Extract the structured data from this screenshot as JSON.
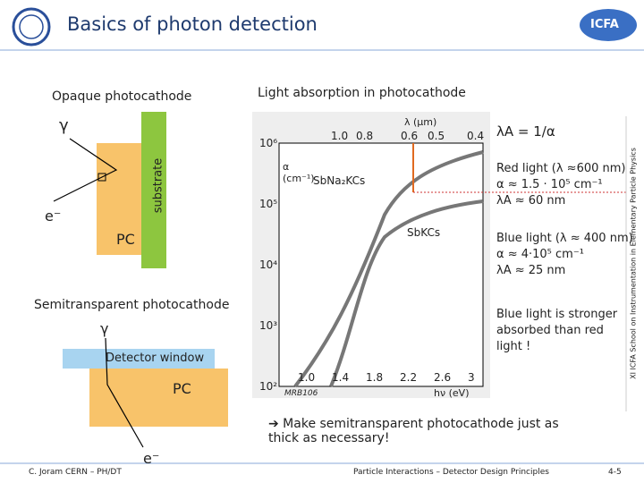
{
  "header": {
    "title": "Basics of photon detection",
    "logo_right": "ICFA"
  },
  "opaque": {
    "title": "Opaque photocathode",
    "gamma": "γ",
    "substrate": "substrate",
    "electron": "e⁻",
    "pc": "PC"
  },
  "semi": {
    "title": "Semitransparent photocathode",
    "gamma": "γ",
    "window": "Detector window",
    "pc": "PC",
    "electron": "e⁻"
  },
  "figure": {
    "title": "Light absorption in photocathode",
    "top_axis_label": "λ (μm)",
    "top_ticks": [
      "1.0",
      "0.8",
      "0.6",
      "0.5",
      "0.4"
    ],
    "y_label": "α (cm⁻¹)",
    "y_ticks": [
      "10⁶",
      "10⁵",
      "10⁴",
      "10³",
      "10²"
    ],
    "x_ticks": [
      "1.0",
      "1.4",
      "1.8",
      "2.2",
      "2.6",
      "3"
    ],
    "x_label": "hν (eV)",
    "curves": [
      "SbNa₂KCs",
      "SbKCs"
    ],
    "ref": "MRB106"
  },
  "notes": {
    "formula": "λA = 1/α",
    "red": [
      "Red light (λ ≈600 nm)",
      "α ≈ 1.5 · 10⁵ cm⁻¹",
      "λA ≈ 60 nm"
    ],
    "blue": [
      "Blue light (λ ≈ 400 nm)",
      "α ≈ 4·10⁵ cm⁻¹",
      "λA ≈ 25 nm"
    ],
    "conclusion": "Blue light is stronger absorbed than red light !",
    "bottom": "➔ Make semitransparent photocathode just as thick as necessary!"
  },
  "footer": {
    "author": "C. Joram  CERN – PH/DT",
    "center": "Particle Interactions – Detector Design Principles",
    "page": "4-5",
    "side": "XI ICFA School on Instrumentation in Elementary Particle Physics"
  }
}
